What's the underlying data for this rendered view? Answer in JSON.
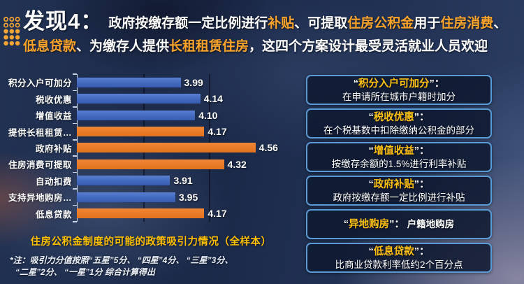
{
  "header": {
    "lead": "发现4：",
    "lines": [
      [
        {
          "t": "政府按缴存额一定比例进行",
          "c": "w"
        },
        {
          "t": "补贴",
          "c": "a"
        },
        {
          "t": "、可提取",
          "c": "w"
        },
        {
          "t": "住房公积金",
          "c": "a"
        },
        {
          "t": "用于",
          "c": "w"
        },
        {
          "t": "住房消费",
          "c": "a"
        },
        {
          "t": "、",
          "c": "w"
        }
      ],
      [
        {
          "t": "低息贷款",
          "c": "a"
        },
        {
          "t": "、为缴存人提供",
          "c": "w"
        },
        {
          "t": "长租租赁住房",
          "c": "a"
        },
        {
          "t": "，这四个方案设计最受灵活就业人员欢迎",
          "c": "w"
        }
      ]
    ]
  },
  "chart_data": {
    "type": "bar",
    "orientation": "horizontal",
    "categories": [
      "积分入户可加分",
      "税收优惠",
      "增值收益",
      "提供长租租赁…",
      "政府补贴",
      "住房消费可提取",
      "自动扣费",
      "支持异地购房…",
      "低息贷款"
    ],
    "values": [
      3.99,
      4.14,
      4.1,
      4.17,
      4.56,
      4.32,
      3.91,
      3.95,
      4.17
    ],
    "value_labels": [
      "3.99",
      "4.14",
      "4.10",
      "4.17",
      "4.56",
      "4.32",
      "3.91",
      "3.95",
      "4.17"
    ],
    "bar_colors": [
      "blue",
      "blue",
      "blue",
      "orange",
      "orange",
      "orange",
      "blue",
      "blue",
      "orange"
    ],
    "xlim": [
      3.2,
      4.7
    ],
    "gridlines": [
      3.7,
      4.2
    ],
    "grid": "vertical-only",
    "legend": "none",
    "title": "住房公积金制度的可能的政策吸引力情况（全样本）",
    "note_lines": [
      "*注：吸引力分值按照“五星”5分、 “四星”4分、 “三星”3分、",
      "“二星”2分、 “一星”1分 综合计算得出"
    ]
  },
  "colors": {
    "bar_blue": "#4169bd",
    "bar_orange": "#e87a26",
    "title_accent": "#fca42c",
    "chart_title": "#ffc000",
    "panel_term": "#ffc113",
    "panel_border": "#5b9bd5",
    "background": "#1b2949"
  },
  "panels": [
    {
      "term": "积分入户可加分",
      "colon": "：",
      "desc": "在申请所在城市户籍时加分",
      "inline": false
    },
    {
      "term": "税收优惠",
      "colon": "：",
      "desc": "在个税基数中扣除缴纳公积金的部分",
      "inline": false
    },
    {
      "term": "增值收益",
      "colon": "：",
      "desc": "按缴存余额的1.5%进行利率补贴",
      "inline": false
    },
    {
      "term": "政府补贴",
      "colon": "：",
      "desc": "政府按缴存额一定比例进行补贴",
      "inline": false
    },
    {
      "term": "异地购房",
      "colon": "：",
      "desc": "户籍地购房",
      "inline": true
    },
    {
      "term": "低息贷款",
      "colon": "：",
      "desc": "比商业贷款利率低约2个百分点",
      "inline": false
    }
  ],
  "icons": {
    "dot_grid": "dot-grid-icon"
  }
}
